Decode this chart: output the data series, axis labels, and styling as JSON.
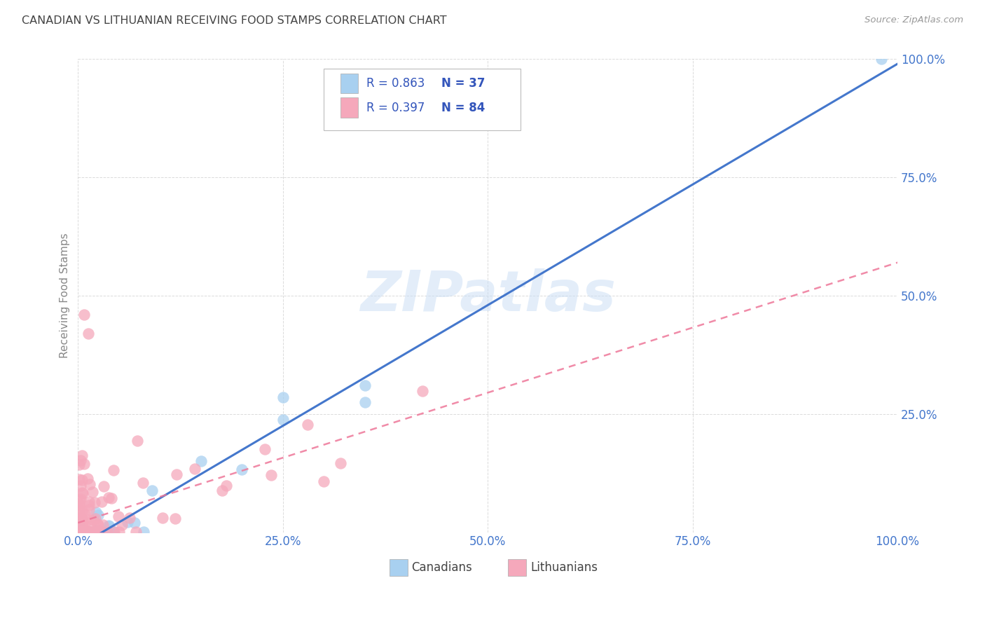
{
  "title": "CANADIAN VS LITHUANIAN RECEIVING FOOD STAMPS CORRELATION CHART",
  "source": "Source: ZipAtlas.com",
  "ylabel": "Receiving Food Stamps",
  "watermark": "ZIPatlas",
  "xlim": [
    0,
    1
  ],
  "ylim": [
    0,
    1
  ],
  "xticks": [
    0.0,
    0.25,
    0.5,
    0.75,
    1.0
  ],
  "yticks": [
    0.0,
    0.25,
    0.5,
    0.75,
    1.0
  ],
  "xticklabels": [
    "0.0%",
    "25.0%",
    "50.0%",
    "75.0%",
    "100.0%"
  ],
  "yticklabels": [
    "",
    "25.0%",
    "50.0%",
    "75.0%",
    "100.0%"
  ],
  "canadian_color": "#A8D0F0",
  "lithuanian_color": "#F5A8BB",
  "canadian_line_color": "#4477CC",
  "lithuanian_line_color": "#EE7799",
  "legend_r1": "R = 0.863",
  "legend_n1": "N = 37",
  "legend_r2": "R = 0.397",
  "legend_n2": "N = 84",
  "legend_text_color": "#3355BB",
  "background_color": "#ffffff",
  "grid_color": "#cccccc",
  "title_color": "#444444",
  "tick_color": "#4477CC",
  "ylabel_color": "#888888",
  "source_color": "#999999",
  "can_slope": 1.02,
  "can_intercept": -0.03,
  "lit_slope": 0.55,
  "lit_intercept": 0.02
}
